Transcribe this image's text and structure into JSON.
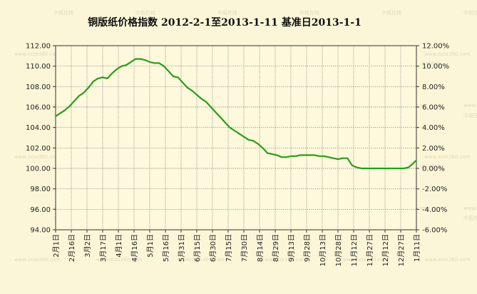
{
  "page": {
    "background": "#fcf6d8",
    "plot_background": "#fef8dc",
    "watermark_text": "www.zzzx360.com",
    "watermark_logo_text": "中纸在线"
  },
  "chart_data": {
    "type": "line",
    "title": "铜版纸价格指数 2012-2-1至2013-1-11 基准日2013-1-1",
    "xlabel": "",
    "ylabel": "",
    "categories": [
      "2月1日",
      "2月16日",
      "3月2日",
      "3月17日",
      "4月1日",
      "4月16日",
      "5月1日",
      "5月16日",
      "5月31日",
      "6月15日",
      "6月30日",
      "7月15日",
      "7月30日",
      "8月14日",
      "8月29日",
      "9月13日",
      "9月28日",
      "10月13日",
      "10月28日",
      "11月12日",
      "11月27日",
      "12月12日",
      "12月27日",
      "1月11日"
    ],
    "ylim": [
      94,
      112
    ],
    "y_ticks": [
      "94.00",
      "96.00",
      "98.00",
      "100.00",
      "102.00",
      "104.00",
      "106.00",
      "108.00",
      "110.00",
      "112.00"
    ],
    "y2lim": [
      -6,
      12
    ],
    "y2_ticks": [
      "-6.00%",
      "-4.00%",
      "-2.00%",
      "0.00%",
      "2.00%",
      "4.00%",
      "6.00%",
      "8.00%",
      "10.00%",
      "12.00%"
    ],
    "grid": true,
    "series": [
      {
        "color": "#2a9d1a",
        "x": [
          0,
          0.3,
          0.6,
          0.9,
          1.2,
          1.5,
          1.8,
          2.1,
          2.4,
          2.7,
          3.0,
          3.3,
          3.6,
          3.9,
          4.2,
          4.5,
          4.8,
          5.1,
          5.4,
          5.7,
          6.0,
          6.3,
          6.6,
          6.9,
          7.2,
          7.5,
          7.8,
          8.1,
          8.4,
          8.7,
          9.0,
          9.3,
          9.6,
          9.9,
          10.2,
          10.5,
          10.8,
          11.1,
          11.4,
          11.7,
          12.0,
          12.3,
          12.6,
          12.9,
          13.2,
          13.5,
          13.8,
          14.1,
          14.4,
          14.7,
          15.0,
          15.3,
          15.6,
          15.9,
          16.2,
          16.5,
          16.8,
          17.1,
          17.4,
          17.7,
          18.0,
          18.3,
          18.6,
          18.9,
          19.2,
          19.5,
          19.8,
          20.1,
          20.4,
          20.7,
          21.0,
          21.3,
          21.6,
          21.9,
          22.2,
          22.5,
          22.8,
          23.0
        ],
        "values": [
          105.1,
          105.4,
          105.7,
          106.1,
          106.6,
          107.1,
          107.4,
          107.9,
          108.5,
          108.8,
          108.9,
          108.8,
          109.3,
          109.7,
          110.0,
          110.1,
          110.4,
          110.7,
          110.7,
          110.6,
          110.4,
          110.3,
          110.3,
          110.0,
          109.5,
          109.0,
          108.9,
          108.4,
          107.9,
          107.6,
          107.2,
          106.8,
          106.5,
          106.0,
          105.5,
          105.0,
          104.5,
          104.0,
          103.7,
          103.4,
          103.1,
          102.8,
          102.7,
          102.4,
          102.0,
          101.5,
          101.4,
          101.3,
          101.1,
          101.1,
          101.2,
          101.2,
          101.3,
          101.3,
          101.3,
          101.3,
          101.2,
          101.2,
          101.1,
          101.0,
          100.9,
          101.0,
          101.0,
          100.3,
          100.1,
          100.0,
          100.0,
          100.0,
          100.0,
          100.0,
          100.0,
          100.0,
          100.0,
          100.0,
          100.0,
          100.1,
          100.5,
          100.8
        ]
      }
    ]
  }
}
